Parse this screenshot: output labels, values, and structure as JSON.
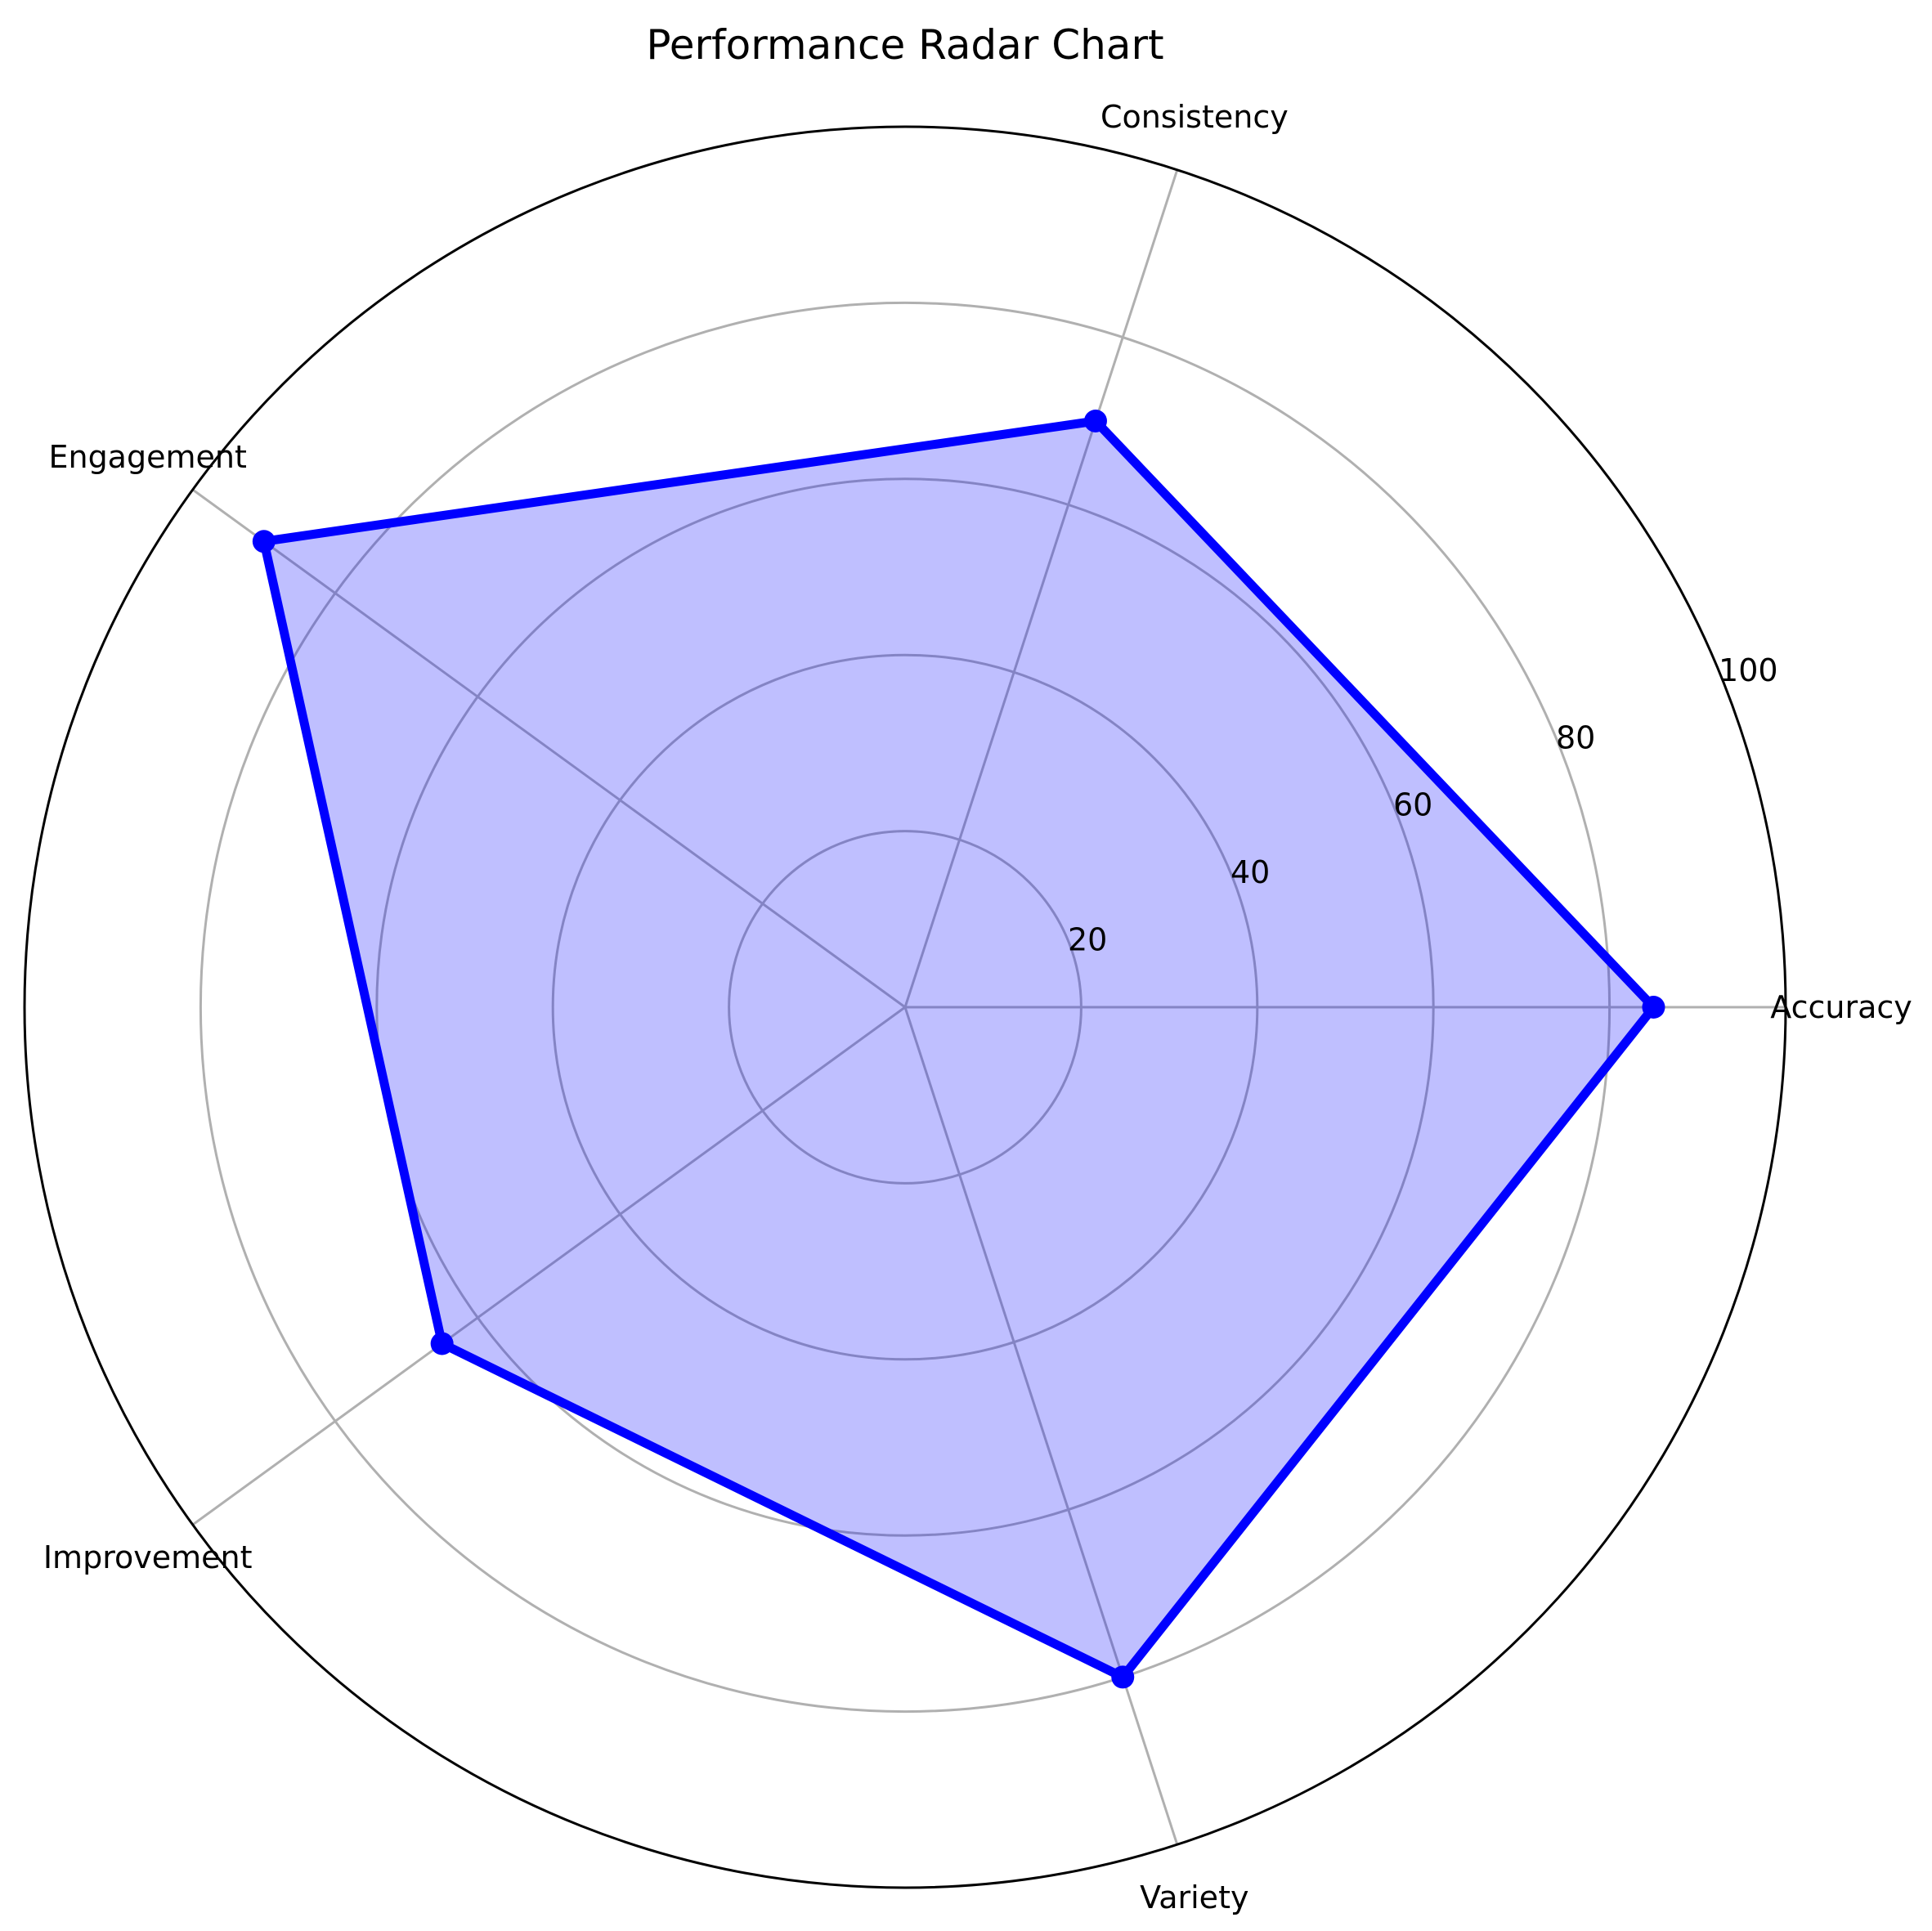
{
  "chart_data": {
    "type": "radar",
    "title": "Performance Radar Chart",
    "categories": [
      "Accuracy",
      "Consistency",
      "Engagement",
      "Improvement",
      "Variety"
    ],
    "series": [
      {
        "values": [
          85,
          70,
          90,
          65,
          80
        ],
        "color": "#0000ff",
        "fill": "#0000ff",
        "fill_alpha": 0.25
      }
    ],
    "rlim": [
      0,
      100
    ],
    "rticks": [
      20,
      40,
      60,
      80,
      100
    ],
    "rtick_labels": [
      "20",
      "40",
      "60",
      "80",
      "100"
    ],
    "grid": true,
    "grid_color": "#b0b0b0",
    "outline_color": "#000000",
    "legend": "none"
  }
}
